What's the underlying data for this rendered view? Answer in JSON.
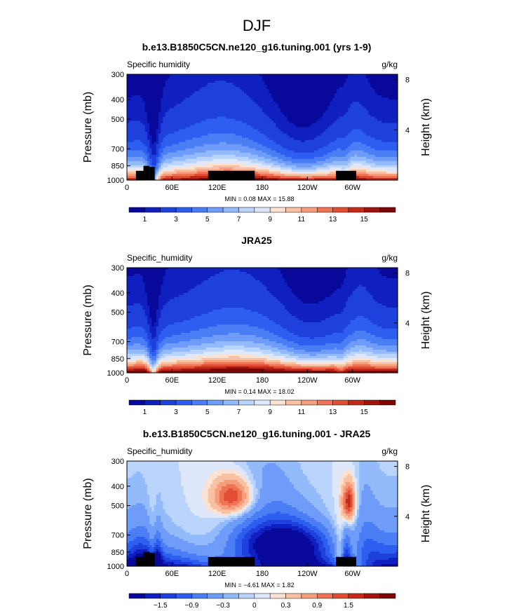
{
  "figure": {
    "season": "DJF"
  },
  "palettes": {
    "abs": [
      "#08089a",
      "#1020c0",
      "#1e40dc",
      "#2d5ef0",
      "#4b7df5",
      "#6e9cf8",
      "#93bbfb",
      "#bad4fb",
      "#dfe8fb",
      "#fbe3d3",
      "#f9c1a3",
      "#f69d7b",
      "#ef7456",
      "#e14e33",
      "#c42a1b",
      "#9f140e",
      "#7a0606"
    ],
    "diff": [
      "#08089a",
      "#1020c0",
      "#1e40dc",
      "#2d5ef0",
      "#4b7df5",
      "#6e9cf8",
      "#93bbfb",
      "#bad4fb",
      "#dfe8fb",
      "#fbe3d3",
      "#f9c1a3",
      "#f69d7b",
      "#ef7456",
      "#e14e33",
      "#c42a1b",
      "#9f140e",
      "#7a0606"
    ]
  },
  "chart_data": [
    {
      "type": "heatmap",
      "id": "model",
      "title": "b.e13.B1850C5CN.ne120_g16.tuning.001 (yrs 1-9)",
      "variable": "Specific humidity",
      "units": "g/kg",
      "ylabel": "Pressure (mb)",
      "ylabel_right": "Height (km)",
      "x_ticks": [
        "0",
        "60E",
        "120E",
        "180",
        "120W",
        "60W"
      ],
      "x_tick_values": [
        0,
        60,
        120,
        180,
        240,
        300
      ],
      "xlim": [
        0,
        360
      ],
      "y_ticks": [
        "300",
        "400",
        "500",
        "700",
        "850",
        "1000"
      ],
      "y_tick_values": [
        300,
        400,
        500,
        700,
        850,
        1000
      ],
      "ylim": [
        300,
        1000
      ],
      "height_ticks": [
        "8",
        "4"
      ],
      "height_tick_values": [
        8,
        4
      ],
      "stats": "MIN =   0.08   MAX =  15.88",
      "colorbar_labels": [
        "1",
        "3",
        "5",
        "7",
        "9",
        "11",
        "13",
        "15"
      ],
      "colorbar_label_slots": [
        1,
        3,
        5,
        7,
        9,
        11,
        13,
        15
      ],
      "levels": [
        0.5,
        1,
        2,
        3,
        4,
        5,
        6,
        7,
        8,
        9,
        10,
        11,
        12,
        13,
        14,
        15
      ],
      "profile": "model",
      "field": "q",
      "palette": "abs",
      "land_blocks": [
        {
          "x0": 12,
          "x1": 30,
          "p": 900
        },
        {
          "x0": 22,
          "x1": 30,
          "p": 850
        },
        {
          "x0": 30,
          "x1": 37,
          "p": 860
        },
        {
          "x0": 108,
          "x1": 170,
          "p": 900
        },
        {
          "x0": 278,
          "x1": 305,
          "p": 900
        }
      ]
    },
    {
      "type": "heatmap",
      "id": "obs",
      "title": "JRA25",
      "variable": "Specific_humidity",
      "units": "g/kg",
      "ylabel": "Pressure (mb)",
      "ylabel_right": "Height (km)",
      "x_ticks": [
        "0",
        "60E",
        "120E",
        "180",
        "120W",
        "60W"
      ],
      "x_tick_values": [
        0,
        60,
        120,
        180,
        240,
        300
      ],
      "xlim": [
        0,
        360
      ],
      "y_ticks": [
        "300",
        "400",
        "500",
        "700",
        "850",
        "1000"
      ],
      "y_tick_values": [
        300,
        400,
        500,
        700,
        850,
        1000
      ],
      "ylim": [
        300,
        1000
      ],
      "height_ticks": [
        "8",
        "4"
      ],
      "height_tick_values": [
        8,
        4
      ],
      "stats": "MIN =   0.14   MAX =  18.02",
      "colorbar_labels": [
        "1",
        "3",
        "5",
        "7",
        "9",
        "11",
        "13",
        "15"
      ],
      "colorbar_label_slots": [
        1,
        3,
        5,
        7,
        9,
        11,
        13,
        15
      ],
      "levels": [
        0.5,
        1,
        2,
        3,
        4,
        5,
        6,
        7,
        8,
        9,
        10,
        11,
        12,
        13,
        14,
        15
      ],
      "profile": "obs",
      "field": "q",
      "palette": "abs",
      "land_blocks": []
    },
    {
      "type": "heatmap",
      "id": "diff",
      "title": "b.e13.B1850C5CN.ne120_g16.tuning.001 - JRA25",
      "variable": "Specific_humidity",
      "units": "g/kg",
      "ylabel": "Pressure (mb)",
      "ylabel_right": "Height (km)",
      "x_ticks": [
        "0",
        "60E",
        "120E",
        "180",
        "120W",
        "60W"
      ],
      "x_tick_values": [
        0,
        60,
        120,
        180,
        240,
        300
      ],
      "xlim": [
        0,
        360
      ],
      "y_ticks": [
        "300",
        "400",
        "500",
        "700",
        "850",
        "1000"
      ],
      "y_tick_values": [
        300,
        400,
        500,
        700,
        850,
        1000
      ],
      "ylim": [
        300,
        1000
      ],
      "height_ticks": [
        "8",
        "4"
      ],
      "height_tick_values": [
        8,
        4
      ],
      "stats": "MIN =  −4.61   MAX =   1.82",
      "colorbar_labels": [
        "−1.5",
        "−0.9",
        "−0.3",
        "0",
        "0.3",
        "0.9",
        "1.5"
      ],
      "colorbar_label_slots": [
        2,
        4,
        6,
        8,
        10,
        12,
        14
      ],
      "levels": [
        -1.8,
        -1.5,
        -1.2,
        -0.9,
        -0.6,
        -0.3,
        -0.15,
        0,
        0.15,
        0.3,
        0.6,
        0.9,
        1.2,
        1.5,
        1.8,
        2.1
      ],
      "profile": "diff",
      "field": "dq",
      "palette": "diff",
      "land_blocks": [
        {
          "x0": 12,
          "x1": 30,
          "p": 900
        },
        {
          "x0": 22,
          "x1": 30,
          "p": 850
        },
        {
          "x0": 30,
          "x1": 37,
          "p": 860
        },
        {
          "x0": 108,
          "x1": 170,
          "p": 900
        },
        {
          "x0": 278,
          "x1": 305,
          "p": 900
        }
      ]
    }
  ]
}
